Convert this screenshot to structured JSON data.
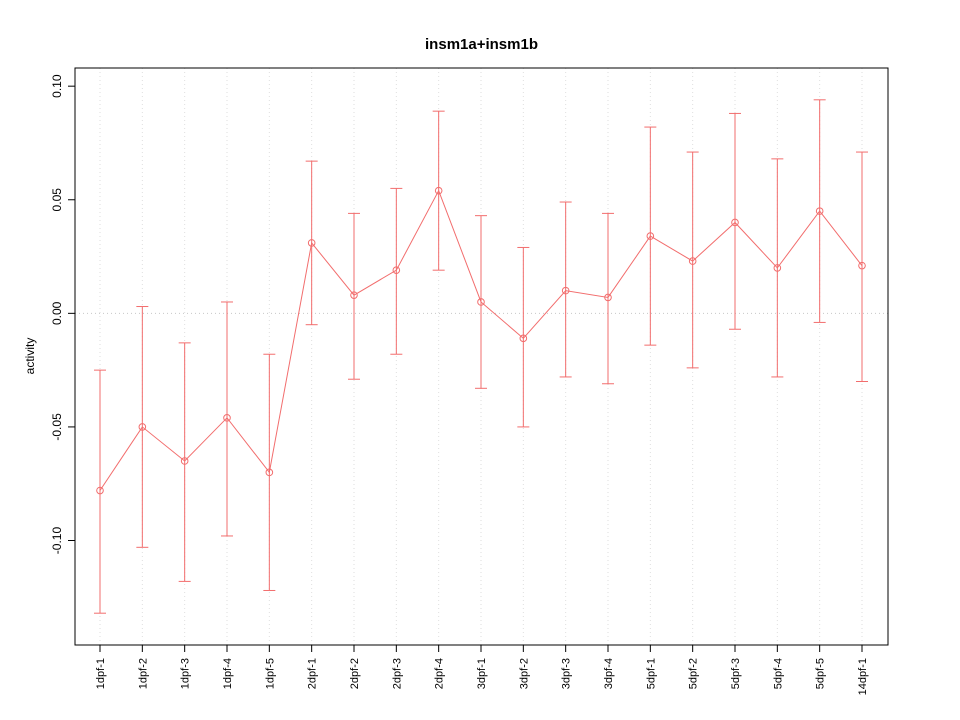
{
  "chart_data": {
    "type": "line",
    "title": "insm1a+insm1b",
    "ylabel": "activity",
    "xlabel": "",
    "categories": [
      "1dpf-1",
      "1dpf-2",
      "1dpf-3",
      "1dpf-4",
      "1dpf-5",
      "2dpf-1",
      "2dpf-2",
      "2dpf-3",
      "2dpf-4",
      "3dpf-1",
      "3dpf-2",
      "3dpf-3",
      "3dpf-4",
      "5dpf-1",
      "5dpf-2",
      "5dpf-3",
      "5dpf-4",
      "5dpf-5",
      "14dpf-1"
    ],
    "values": [
      -0.078,
      -0.05,
      -0.065,
      -0.046,
      -0.07,
      0.031,
      0.008,
      0.019,
      0.054,
      0.005,
      -0.011,
      0.01,
      0.007,
      0.034,
      0.023,
      0.04,
      0.02,
      0.045,
      0.021
    ],
    "error_lower": [
      -0.132,
      -0.103,
      -0.118,
      -0.098,
      -0.122,
      -0.005,
      -0.029,
      -0.018,
      0.019,
      -0.033,
      -0.05,
      -0.028,
      -0.031,
      -0.014,
      -0.024,
      -0.007,
      -0.028,
      -0.004,
      -0.03
    ],
    "error_upper": [
      -0.025,
      0.003,
      -0.013,
      0.005,
      -0.018,
      0.067,
      0.044,
      0.055,
      0.089,
      0.043,
      0.029,
      0.049,
      0.044,
      0.082,
      0.071,
      0.088,
      0.068,
      0.094,
      0.071
    ],
    "ylim": [
      -0.146,
      0.108
    ],
    "yticks": [
      -0.1,
      -0.05,
      0.0,
      0.05,
      0.1
    ],
    "grid": {
      "vertical": "dotted line at each category",
      "horizontal_at": [
        0
      ],
      "style": "dotted"
    },
    "legend": "none",
    "colors": {
      "series": "#f26d6d",
      "grid": "#dedede",
      "zero_line": "#c8c8c8",
      "axis": "#000000"
    }
  }
}
